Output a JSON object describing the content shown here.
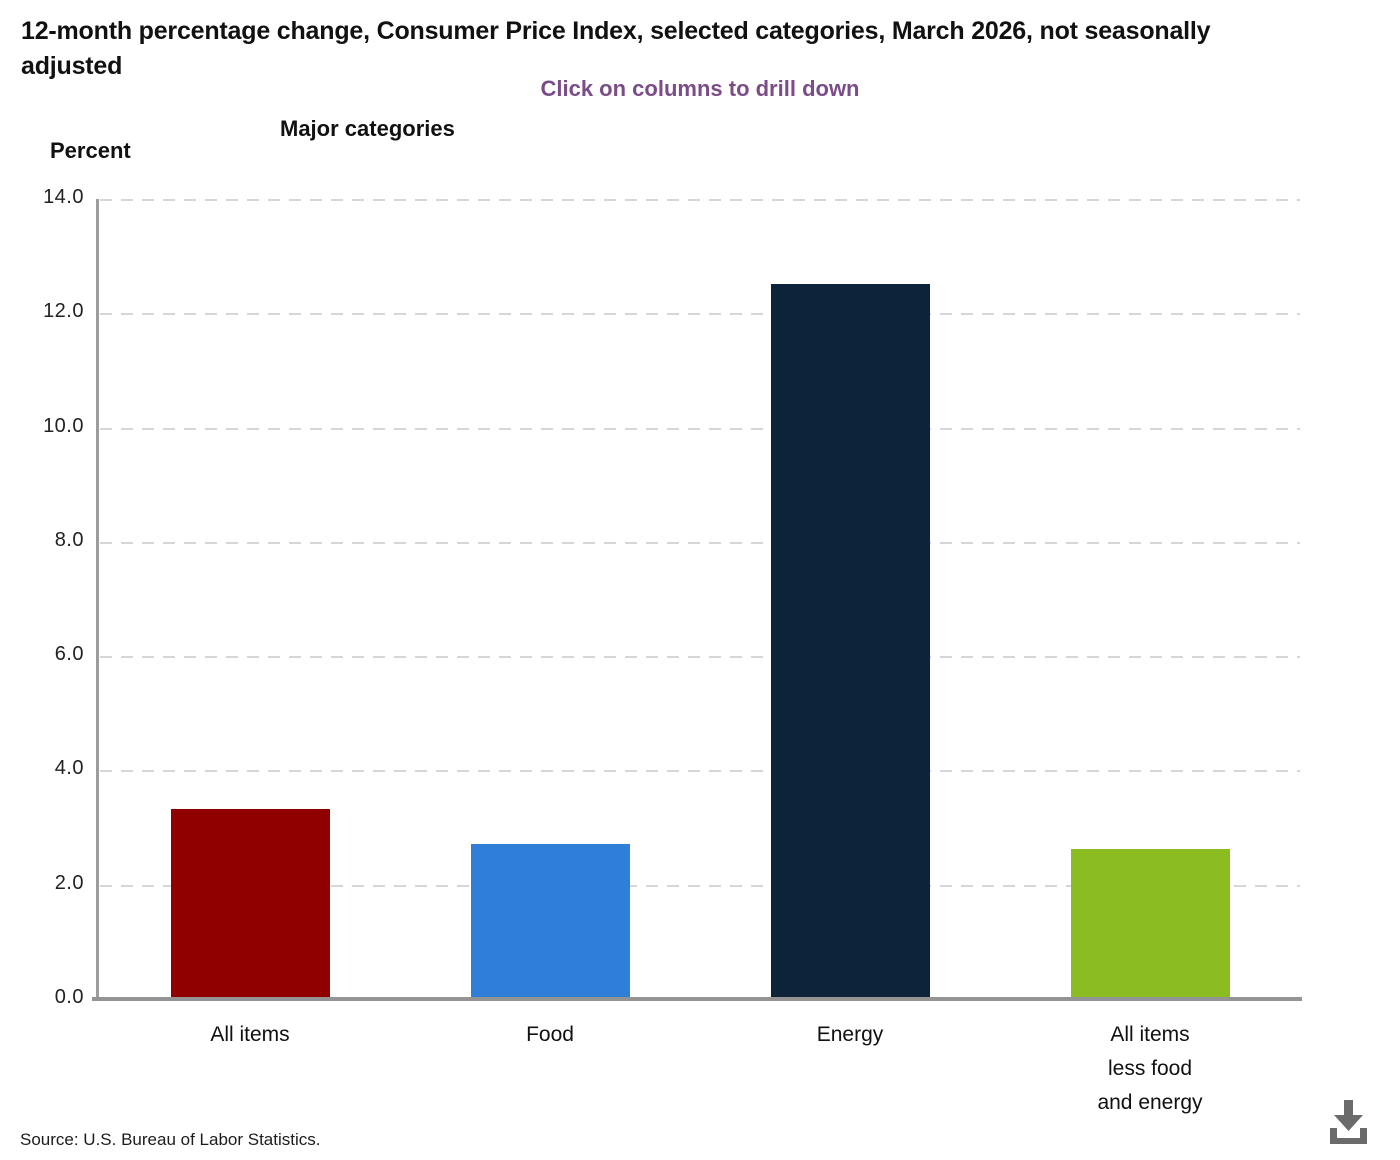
{
  "title": "12-month percentage change, Consumer Price Index, selected categories, March 2026, not seasonally adjusted",
  "subtitle": {
    "text": "Click on columns to drill down",
    "color": "#7b4d88"
  },
  "axis_titles": {
    "y": "Percent",
    "x": "Major categories"
  },
  "source": "Source: U.S. Bureau of Labor Statistics.",
  "colors": {
    "all_items": "#910000",
    "food": "#2f7ed8",
    "energy": "#0d233a",
    "all_items_less_food_and_energy": "#8bbc21",
    "gridline": "#d6d6d6",
    "axis_line": "#9d9d9d",
    "baseline": "#949494",
    "download_icon": "#6b6b6b"
  },
  "chart_data": {
    "type": "bar",
    "title": "12-month percentage change, Consumer Price Index, selected categories, March 2026, not seasonally adjusted",
    "subtitle": "Click on columns to drill down",
    "categories": [
      "All items",
      "Food",
      "Energy",
      "All items less food and energy"
    ],
    "values": [
      3.3,
      2.7,
      12.5,
      2.6
    ],
    "bar_colors": [
      "#910000",
      "#2f7ed8",
      "#0d233a",
      "#8bbc21"
    ],
    "display_categories": [
      "All items",
      "Food",
      "Energy",
      "All items\nless food\nand energy"
    ],
    "xlabel": "Major categories",
    "ylabel": "Percent",
    "ylim": [
      0,
      14
    ],
    "ytick_step": 2,
    "ytick_labels": [
      "0.0",
      "2.0",
      "4.0",
      "6.0",
      "8.0",
      "10.0",
      "12.0",
      "14.0"
    ],
    "grid": "horizontal dashed",
    "legend": "none"
  }
}
